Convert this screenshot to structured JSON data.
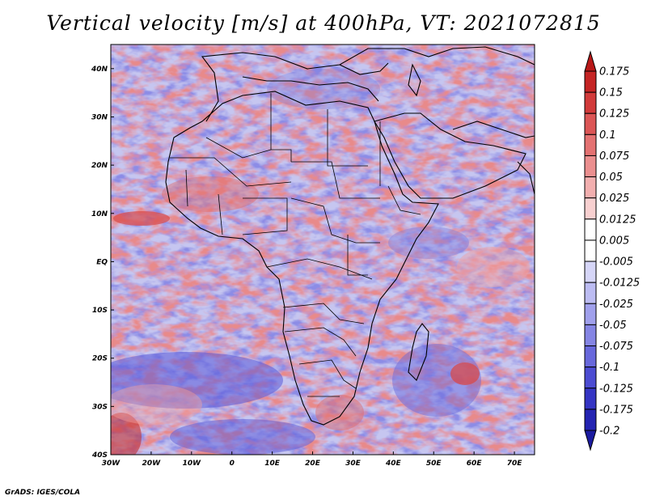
{
  "title": "Vertical velocity [m/s] at 400hPa, VT: 2021072815",
  "credit": "GrADS: IGES/COLA",
  "map": {
    "lon_range": [
      -30,
      75
    ],
    "lat_range": [
      -40,
      45
    ],
    "lat_ticks": [
      "40N",
      "30N",
      "20N",
      "10N",
      "EQ",
      "10S",
      "20S",
      "30S",
      "40S"
    ],
    "lon_ticks": [
      "30W",
      "20W",
      "10W",
      "0",
      "10E",
      "20E",
      "30E",
      "40E",
      "50E",
      "60E",
      "70E"
    ],
    "background_pattern": "noisy-contour-field",
    "features": {
      "coastlines": true,
      "country_borders": true
    }
  },
  "colorbar": {
    "orientation": "vertical",
    "levels": [
      "0.175",
      "0.15",
      "0.125",
      "0.1",
      "0.075",
      "0.05",
      "0.025",
      "0.0125",
      "0.005",
      "-0.005",
      "-0.0125",
      "-0.025",
      "-0.05",
      "-0.075",
      "-0.1",
      "-0.125",
      "-0.175",
      "-0.2"
    ],
    "colors": [
      "#b81818",
      "#c52525",
      "#d23b3b",
      "#dc5656",
      "#e47272",
      "#eb8f8f",
      "#f2afaf",
      "#f8d0d0",
      "#ffffff",
      "#ffffff",
      "#d6d6f8",
      "#bcbcf2",
      "#a0a0ec",
      "#8585e4",
      "#6868dc",
      "#4c4cd2",
      "#3535c4",
      "#2424b2",
      "#1b1ba0"
    ]
  }
}
